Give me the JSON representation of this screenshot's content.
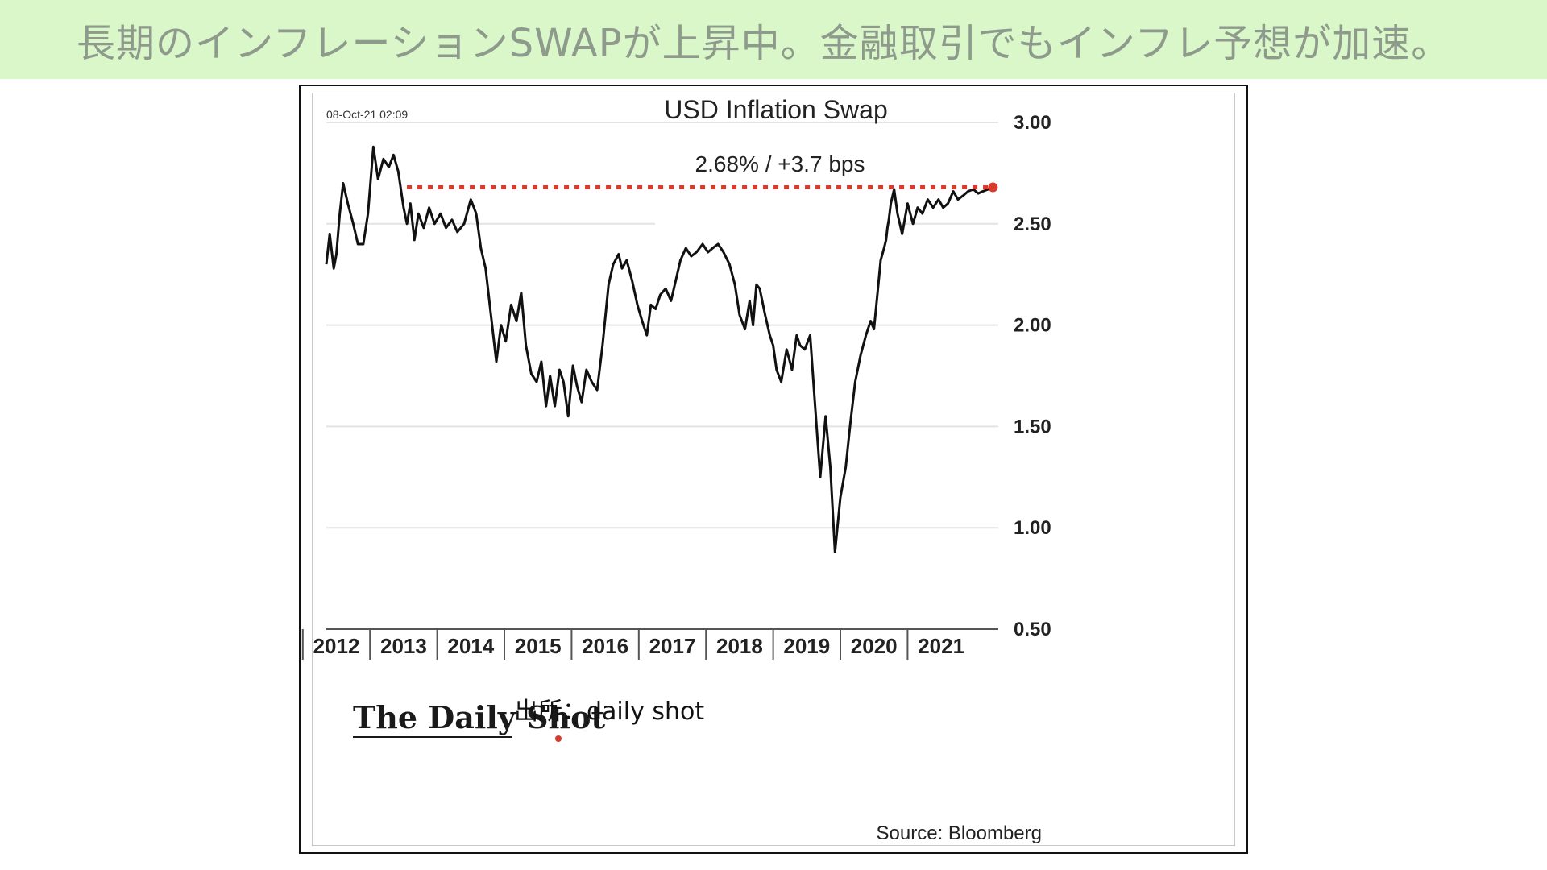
{
  "banner": {
    "text": "長期のインフレーションSWAPが上昇中。金融取引でもインフレ予想が加速。",
    "background": "#d9f7c9",
    "text_color": "#8e9a8c"
  },
  "credit": {
    "text": "出所：daily shot"
  },
  "chart_data": {
    "type": "line",
    "title": "USD Inflation Swap",
    "subtitle": "2.68%  /  +3.7 bps",
    "timestamp": "08-Oct-21 02:09",
    "source": "Source: Bloomberg",
    "watermark": "The Daily Shot",
    "xlim": [
      2011.85,
      2021.85
    ],
    "ylim": [
      0.5,
      3.0
    ],
    "yticks": [
      "3.00",
      "2.50",
      "2.00",
      "1.50",
      "1.00",
      "0.50"
    ],
    "ytick_values": [
      3.0,
      2.5,
      2.0,
      1.5,
      1.0,
      0.5
    ],
    "xticks": [
      "2012",
      "2013",
      "2014",
      "2015",
      "2016",
      "2017",
      "2018",
      "2019",
      "2020",
      "2021"
    ],
    "xtick_values": [
      2012,
      2013,
      2014,
      2015,
      2016,
      2017,
      2018,
      2019,
      2020,
      2021
    ],
    "grid": true,
    "line_color": "#111111",
    "reference_line": {
      "y": 2.68,
      "x_start": 2013.05,
      "x_end": 2021.75,
      "color": "#d93a2b",
      "style": "dotted"
    },
    "marker": {
      "x": 2021.77,
      "y": 2.68,
      "color": "#d93a2b"
    },
    "series": [
      {
        "x": [
          2011.85,
          2011.9,
          2011.96,
          2012.0,
          2012.05,
          2012.1,
          2012.17,
          2012.25,
          2012.32,
          2012.4,
          2012.47,
          2012.55,
          2012.62,
          2012.7,
          2012.78,
          2012.85,
          2012.92,
          2013.0,
          2013.05,
          2013.1,
          2013.16,
          2013.22,
          2013.3,
          2013.38,
          2013.46,
          2013.55,
          2013.63,
          2013.72,
          2013.8,
          2013.9,
          2014.0,
          2014.08,
          2014.15,
          2014.22,
          2014.3,
          2014.38,
          2014.45,
          2014.52,
          2014.6,
          2014.68,
          2014.75,
          2014.82,
          2014.9,
          2014.98,
          2015.05,
          2015.12,
          2015.18,
          2015.25,
          2015.32,
          2015.38,
          2015.45,
          2015.52,
          2015.58,
          2015.65,
          2015.72,
          2015.8,
          2015.88,
          2015.96,
          2016.05,
          2016.12,
          2016.2,
          2016.25,
          2016.32,
          2016.4,
          2016.48,
          2016.55,
          2016.62,
          2016.68,
          2016.75,
          2016.82,
          2016.9,
          2016.98,
          2017.05,
          2017.12,
          2017.2,
          2017.28,
          2017.36,
          2017.45,
          2017.53,
          2017.6,
          2017.68,
          2017.76,
          2017.85,
          2017.93,
          2018.0,
          2018.08,
          2018.15,
          2018.2,
          2018.25,
          2018.3,
          2018.38,
          2018.45,
          2018.5,
          2018.55,
          2018.62,
          2018.7,
          2018.78,
          2018.85,
          2018.9,
          2018.97,
          2019.05,
          2019.12,
          2019.2,
          2019.28,
          2019.35,
          2019.42,
          2019.5,
          2019.58,
          2019.65,
          2019.72,
          2019.8,
          2019.88,
          2019.95,
          2020.0,
          2020.05,
          2020.1,
          2020.15,
          2020.18,
          2020.2,
          2020.22,
          2020.25,
          2020.3,
          2020.35,
          2020.42,
          2020.5,
          2020.58,
          2020.65,
          2020.72,
          2020.8,
          2020.88,
          2020.96,
          2021.03,
          2021.1,
          2021.18,
          2021.25,
          2021.33,
          2021.4,
          2021.48,
          2021.55,
          2021.62,
          2021.7,
          2021.77
        ],
        "y": [
          2.3,
          2.45,
          2.28,
          2.35,
          2.55,
          2.7,
          2.6,
          2.5,
          2.4,
          2.4,
          2.55,
          2.88,
          2.72,
          2.82,
          2.78,
          2.84,
          2.76,
          2.58,
          2.5,
          2.6,
          2.42,
          2.55,
          2.48,
          2.58,
          2.5,
          2.55,
          2.48,
          2.52,
          2.46,
          2.5,
          2.62,
          2.55,
          2.38,
          2.28,
          2.05,
          1.82,
          2.0,
          1.92,
          2.1,
          2.02,
          2.16,
          1.9,
          1.76,
          1.72,
          1.82,
          1.6,
          1.75,
          1.6,
          1.78,
          1.72,
          1.55,
          1.8,
          1.7,
          1.62,
          1.78,
          1.72,
          1.68,
          1.9,
          2.2,
          2.3,
          2.35,
          2.28,
          2.32,
          2.22,
          2.1,
          2.02,
          1.95,
          2.1,
          2.08,
          2.15,
          2.18,
          2.12,
          2.22,
          2.32,
          2.38,
          2.34,
          2.36,
          2.4,
          2.36,
          2.38,
          2.4,
          2.36,
          2.3,
          2.2,
          2.05,
          1.98,
          2.12,
          2.0,
          2.2,
          2.18,
          2.05,
          1.95,
          1.9,
          1.78,
          1.72,
          1.88,
          1.78,
          1.95,
          1.9,
          1.88,
          1.95,
          1.62,
          1.25,
          1.55,
          1.3,
          0.88,
          1.15,
          1.3,
          1.52,
          1.72,
          1.85,
          1.95,
          2.02,
          1.98,
          2.15,
          2.32,
          2.38,
          2.42,
          2.48,
          2.52,
          2.6,
          2.67,
          2.55,
          2.45,
          2.6,
          2.5,
          2.58,
          2.55,
          2.62,
          2.58,
          2.62,
          2.58,
          2.6,
          2.66,
          2.62,
          2.64,
          2.66,
          2.67,
          2.65,
          2.66,
          2.67,
          2.68
        ]
      }
    ]
  }
}
